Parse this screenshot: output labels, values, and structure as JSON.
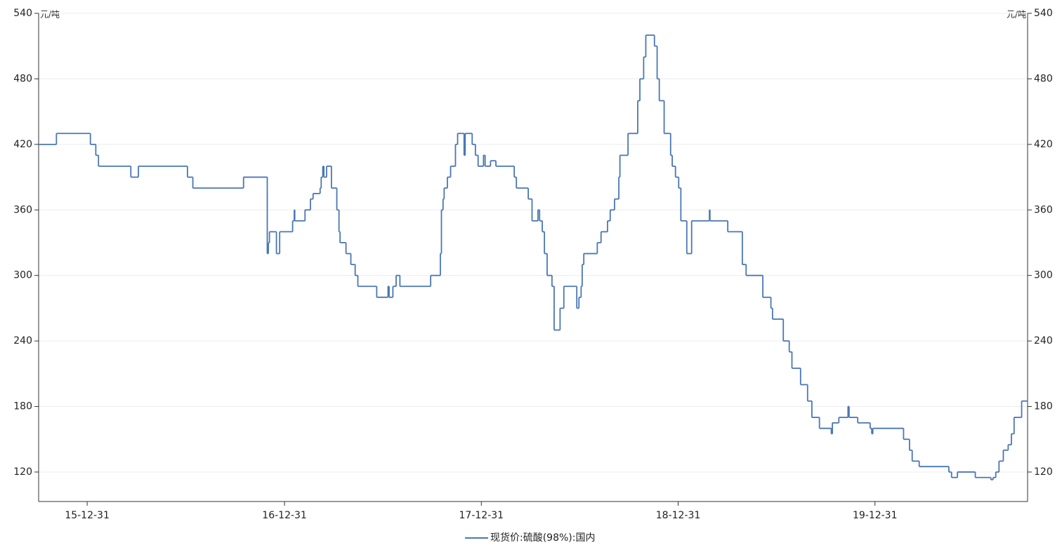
{
  "chart_data": {
    "type": "step-line",
    "y_unit": "元/吨",
    "x": [
      "15-10-02",
      "15-11-04",
      "16-01-06",
      "16-01-16",
      "16-01-21",
      "16-03-21",
      "16-04-04",
      "16-07-04",
      "16-07-14",
      "16-10-16",
      "16-11-29",
      "16-12-01",
      "16-12-03",
      "16-12-16",
      "16-12-22",
      "17-01-15",
      "17-01-18",
      "17-01-19",
      "17-02-07",
      "17-02-17",
      "17-02-22",
      "17-03-07",
      "17-03-09",
      "17-03-12",
      "17-03-14",
      "17-03-19",
      "17-03-28",
      "17-04-07",
      "17-04-11",
      "17-04-13",
      "17-04-24",
      "17-05-03",
      "17-05-11",
      "17-05-16",
      "17-06-20",
      "17-07-11",
      "17-07-13",
      "17-07-20",
      "17-07-26",
      "17-08-02",
      "17-09-28",
      "17-10-16",
      "17-10-18",
      "17-10-21",
      "17-10-23",
      "17-10-29",
      "17-11-04",
      "17-11-13",
      "17-11-17",
      "17-11-29",
      "17-12-01",
      "17-12-14",
      "17-12-20",
      "17-12-25",
      "18-01-04",
      "18-01-07",
      "18-01-17",
      "18-01-27",
      "18-03-02",
      "18-03-06",
      "18-03-28",
      "18-04-04",
      "18-04-15",
      "18-04-18",
      "18-04-23",
      "18-04-27",
      "18-05-02",
      "18-05-11",
      "18-05-15",
      "18-05-26",
      "18-06-02",
      "18-06-26",
      "18-06-30",
      "18-07-04",
      "18-07-06",
      "18-07-09",
      "18-08-03",
      "18-08-10",
      "18-08-22",
      "18-08-27",
      "18-09-04",
      "18-09-12",
      "18-09-14",
      "18-09-29",
      "18-10-17",
      "18-10-21",
      "18-10-28",
      "18-11-01",
      "18-11-17",
      "18-11-22",
      "18-11-26",
      "18-12-05",
      "18-12-17",
      "18-12-20",
      "18-12-26",
      "19-01-01",
      "19-01-05",
      "19-01-16",
      "19-01-25",
      "19-02-27",
      "19-02-28",
      "19-04-02",
      "19-04-29",
      "19-05-06",
      "19-06-06",
      "19-06-21",
      "19-06-24",
      "19-07-14",
      "19-07-25",
      "19-07-30",
      "19-08-15",
      "19-08-28",
      "19-09-05",
      "19-09-19",
      "19-10-11",
      "19-10-13",
      "19-10-25",
      "19-11-11",
      "19-11-13",
      "19-11-29",
      "19-12-22",
      "19-12-25",
      "19-12-27",
      "20-02-22",
      "20-03-04",
      "20-03-09",
      "20-03-22",
      "20-05-16",
      "20-05-21",
      "20-06-01",
      "20-07-04",
      "20-08-02",
      "20-08-06",
      "20-08-11",
      "20-08-17",
      "20-08-25",
      "20-09-03",
      "20-09-09",
      "20-09-14",
      "20-09-28"
    ],
    "series": [
      {
        "name": "现货价:硫酸(98%):国内",
        "color": "#4a77b4",
        "values": [
          420,
          430,
          420,
          410,
          400,
          390,
          400,
          390,
          380,
          390,
          320,
          330,
          340,
          320,
          340,
          350,
          360,
          350,
          360,
          370,
          375,
          380,
          390,
          400,
          390,
          400,
          380,
          360,
          340,
          330,
          320,
          310,
          300,
          290,
          280,
          290,
          280,
          290,
          300,
          290,
          300,
          320,
          360,
          370,
          380,
          390,
          400,
          420,
          430,
          410,
          430,
          420,
          410,
          400,
          410,
          400,
          405,
          400,
          390,
          380,
          370,
          350,
          360,
          350,
          340,
          320,
          300,
          290,
          250,
          270,
          290,
          270,
          280,
          290,
          310,
          320,
          330,
          340,
          350,
          360,
          370,
          390,
          410,
          430,
          460,
          480,
          500,
          520,
          510,
          480,
          460,
          430,
          410,
          400,
          390,
          380,
          350,
          320,
          350,
          360,
          350,
          340,
          310,
          300,
          280,
          270,
          260,
          240,
          230,
          215,
          200,
          185,
          170,
          160,
          155,
          165,
          170,
          180,
          170,
          165,
          160,
          155,
          160,
          150,
          140,
          130,
          125,
          120,
          115,
          120,
          115,
          113,
          115,
          120,
          130,
          140,
          145,
          155,
          170,
          185
        ]
      }
    ],
    "xlim": [
      "15-10-02",
      "20-10-09"
    ],
    "xticks": [
      "15-12-31",
      "16-12-31",
      "17-12-31",
      "18-12-31",
      "19-12-31"
    ],
    "ylim": [
      93,
      540
    ],
    "yticks": [
      120,
      180,
      240,
      300,
      360,
      420,
      480,
      540
    ],
    "y2lim": [
      93,
      540
    ],
    "y2ticks": [
      120,
      180,
      240,
      300,
      360,
      420,
      480,
      540
    ],
    "grid": true,
    "legend": "bottom"
  }
}
